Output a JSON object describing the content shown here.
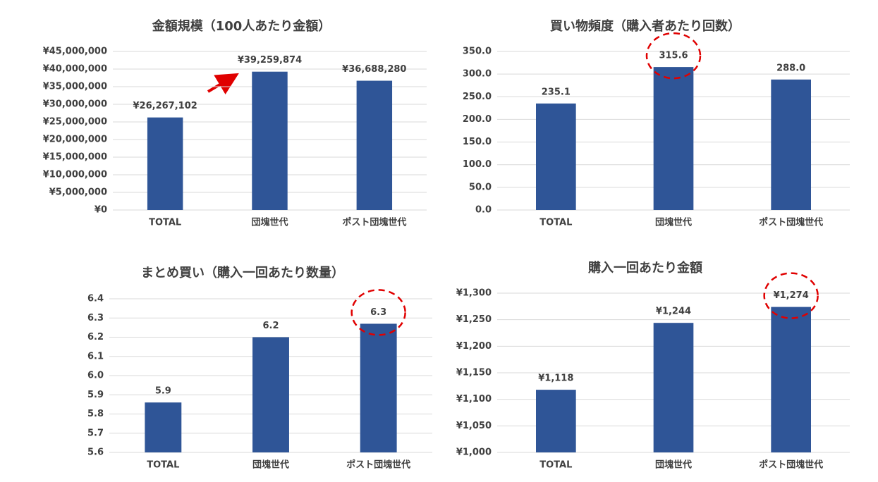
{
  "chart_data": [
    {
      "type": "bar",
      "title": "金額規模（100人あたり金額）",
      "categories": [
        "TOTAL",
        "団塊世代",
        "ポスト団塊世代"
      ],
      "values": [
        26267102,
        39259874,
        36688280
      ],
      "value_labels": [
        "¥26,267,102",
        "¥39,259,874",
        "¥36,688,280"
      ],
      "color": "#2f5597",
      "ylim": [
        0,
        45000000
      ],
      "yticks": [
        {
          "value": 0,
          "label": "¥0"
        },
        {
          "value": 5000000,
          "label": "¥5,000,000"
        },
        {
          "value": 10000000,
          "label": "¥10,000,000"
        },
        {
          "value": 15000000,
          "label": "¥15,000,000"
        },
        {
          "value": 20000000,
          "label": "¥20,000,000"
        },
        {
          "value": 25000000,
          "label": "¥25,000,000"
        },
        {
          "value": 30000000,
          "label": "¥30,000,000"
        },
        {
          "value": 35000000,
          "label": "¥35,000,000"
        },
        {
          "value": 40000000,
          "label": "¥40,000,000"
        },
        {
          "value": 45000000,
          "label": "¥45,000,000"
        }
      ],
      "grid": true
    },
    {
      "type": "bar",
      "title": "買い物頻度（購入者あたり回数）",
      "categories": [
        "TOTAL",
        "団塊世代",
        "ポスト団塊世代"
      ],
      "values": [
        235.1,
        315.6,
        288.0
      ],
      "value_labels": [
        "235.1",
        "315.6",
        "288.0"
      ],
      "color": "#2f5597",
      "ylim": [
        0,
        350
      ],
      "yticks": [
        {
          "value": 0,
          "label": "0.0"
        },
        {
          "value": 50,
          "label": "50.0"
        },
        {
          "value": 100,
          "label": "100.0"
        },
        {
          "value": 150,
          "label": "150.0"
        },
        {
          "value": 200,
          "label": "200.0"
        },
        {
          "value": 250,
          "label": "250.0"
        },
        {
          "value": 300,
          "label": "300.0"
        },
        {
          "value": 350,
          "label": "350.0"
        }
      ],
      "grid": true
    },
    {
      "type": "bar",
      "title": "まとめ買い（購入一回あたり数量）",
      "categories": [
        "TOTAL",
        "団塊世代",
        "ポスト団塊世代"
      ],
      "values": [
        5.86,
        6.2,
        6.27
      ],
      "value_labels": [
        "5.9",
        "6.2",
        "6.3"
      ],
      "color": "#2f5597",
      "ylim": [
        5.6,
        6.4
      ],
      "yticks": [
        5.6,
        5.7,
        5.8,
        5.9,
        {
          "value": 6.0,
          "label": "6.0"
        },
        6.1,
        6.2,
        6.3,
        6.4
      ],
      "grid": true
    },
    {
      "type": "bar",
      "title": "購入一回あたり金額",
      "categories": [
        "TOTAL",
        "団塊世代",
        "ポスト団塊世代"
      ],
      "values": [
        1118,
        1244,
        1274
      ],
      "value_labels": [
        "¥1,118",
        "¥1,244",
        "¥1,274"
      ],
      "color": "#2f5597",
      "ylim": [
        1000,
        1300
      ],
      "yticks": [
        {
          "value": 1000,
          "label": "¥1,000"
        },
        {
          "value": 1050,
          "label": "¥1,050"
        },
        {
          "value": 1100,
          "label": "¥1,100"
        },
        {
          "value": 1150,
          "label": "¥1,150"
        },
        {
          "value": 1200,
          "label": "¥1,200"
        },
        {
          "value": 1250,
          "label": "¥1,250"
        },
        {
          "value": 1300,
          "label": "¥1,300"
        }
      ],
      "grid": true
    }
  ]
}
